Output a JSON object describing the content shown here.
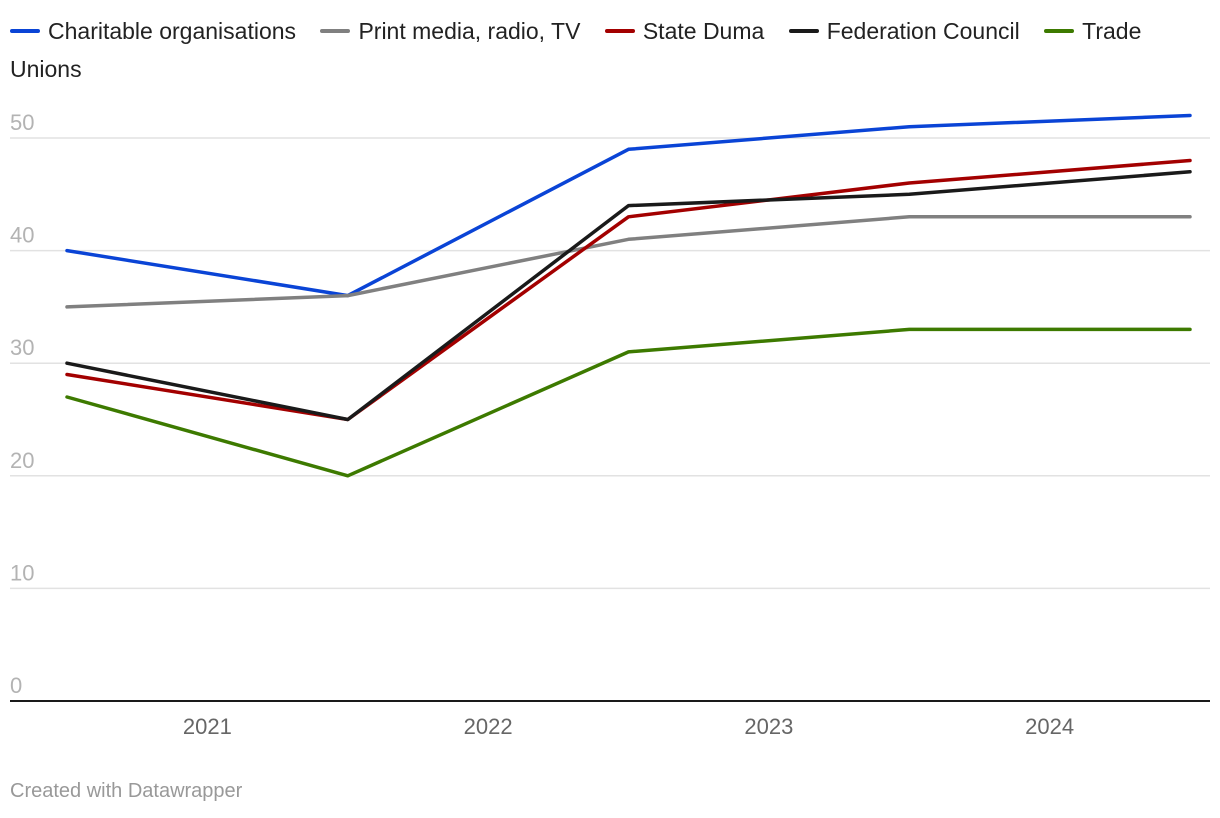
{
  "chart_data": {
    "type": "line",
    "title": "",
    "xlabel": "",
    "ylabel": "",
    "ylim": [
      0,
      50
    ],
    "yticks": [
      0,
      10,
      20,
      30,
      40,
      50
    ],
    "x_tick_labels": [
      "2021",
      "2022",
      "2023",
      "2024"
    ],
    "x": [
      0,
      1,
      2,
      3,
      4
    ],
    "series": [
      {
        "name": "Charitable organisations",
        "color": "#0a44d6",
        "values": [
          40,
          36,
          49,
          51,
          52
        ]
      },
      {
        "name": "Print media, radio, TV",
        "color": "#808080",
        "values": [
          35,
          36,
          41,
          43,
          43
        ]
      },
      {
        "name": "State Duma",
        "color": "#a30000",
        "values": [
          29,
          25,
          43,
          46,
          48
        ]
      },
      {
        "name": "Federation Council",
        "color": "#1a1a1a",
        "values": [
          30,
          25,
          44,
          45,
          47
        ]
      },
      {
        "name": "Trade Unions",
        "color": "#3d7a00",
        "values": [
          27,
          20,
          31,
          33,
          33
        ]
      }
    ]
  },
  "footer": {
    "credit": "Created with Datawrapper"
  }
}
